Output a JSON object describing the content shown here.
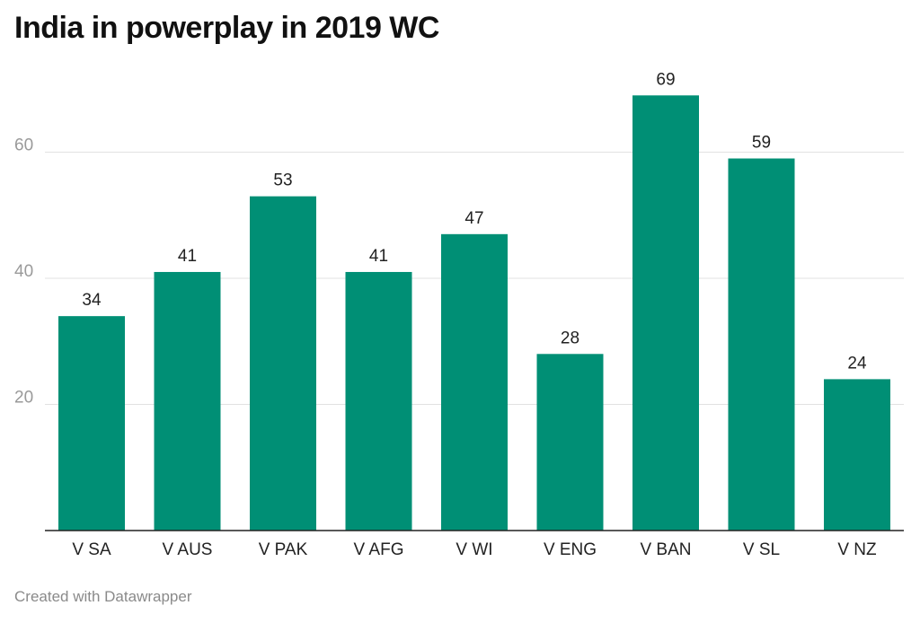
{
  "title": "India in powerplay in 2019 WC",
  "footer": "Created with Datawrapper",
  "colors": {
    "bar": "#008f75",
    "grid": "#e2e2e2",
    "axis": "#222222"
  },
  "chart_data": {
    "type": "bar",
    "title": "India in powerplay in 2019 WC",
    "categories": [
      "V SA",
      "V AUS",
      "V PAK",
      "V AFG",
      "V WI",
      "V ENG",
      "V BAN",
      "V SL",
      "V NZ"
    ],
    "values": [
      34,
      41,
      53,
      41,
      47,
      28,
      69,
      59,
      24
    ],
    "yticks": [
      20,
      40,
      60
    ],
    "ylim": [
      0,
      72
    ],
    "grid": true,
    "xlabel": "",
    "ylabel": ""
  }
}
